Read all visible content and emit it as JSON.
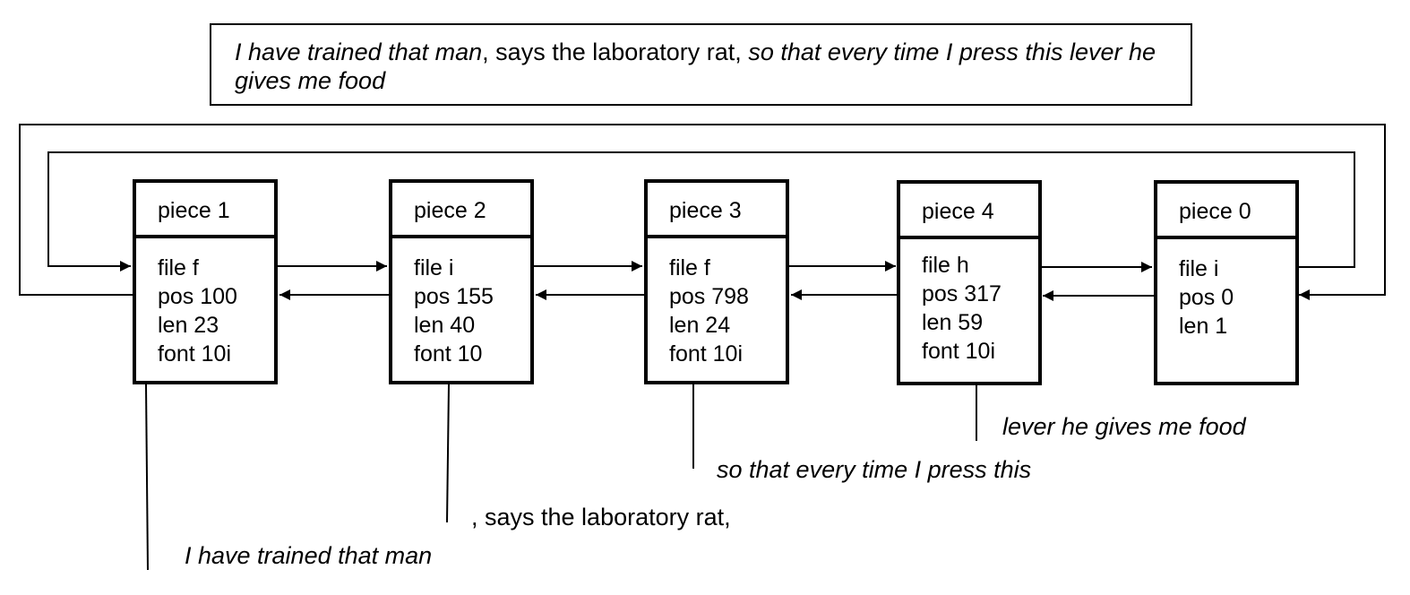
{
  "caption": {
    "parts": [
      {
        "text": "I have trained that man",
        "italic": true
      },
      {
        "text": ", says the laboratory rat, ",
        "italic": false
      },
      {
        "text": "so that every time I press this lever he gives me food",
        "italic": true
      }
    ]
  },
  "pieces": [
    {
      "name": "piece 1",
      "file": "file f",
      "pos": "pos 100",
      "len": "len 23",
      "font": "font 10i"
    },
    {
      "name": "piece 2",
      "file": "file i",
      "pos": "pos 155",
      "len": "len 40",
      "font": "font 10"
    },
    {
      "name": "piece 3",
      "file": "file f",
      "pos": "pos 798",
      "len": "len 24",
      "font": "font 10i"
    },
    {
      "name": "piece 4",
      "file": "file h",
      "pos": "pos 317",
      "len": "len 59",
      "font": "font 10i"
    },
    {
      "name": "piece 0",
      "file": "file i",
      "pos": "pos 0",
      "len": "len 1"
    }
  ],
  "segments": [
    {
      "text": "I have trained that man",
      "italic": true
    },
    {
      "text": ", says the laboratory rat,",
      "italic": false
    },
    {
      "text": "so that every time I press this",
      "italic": true
    },
    {
      "text": "lever he gives me food",
      "italic": true
    }
  ]
}
